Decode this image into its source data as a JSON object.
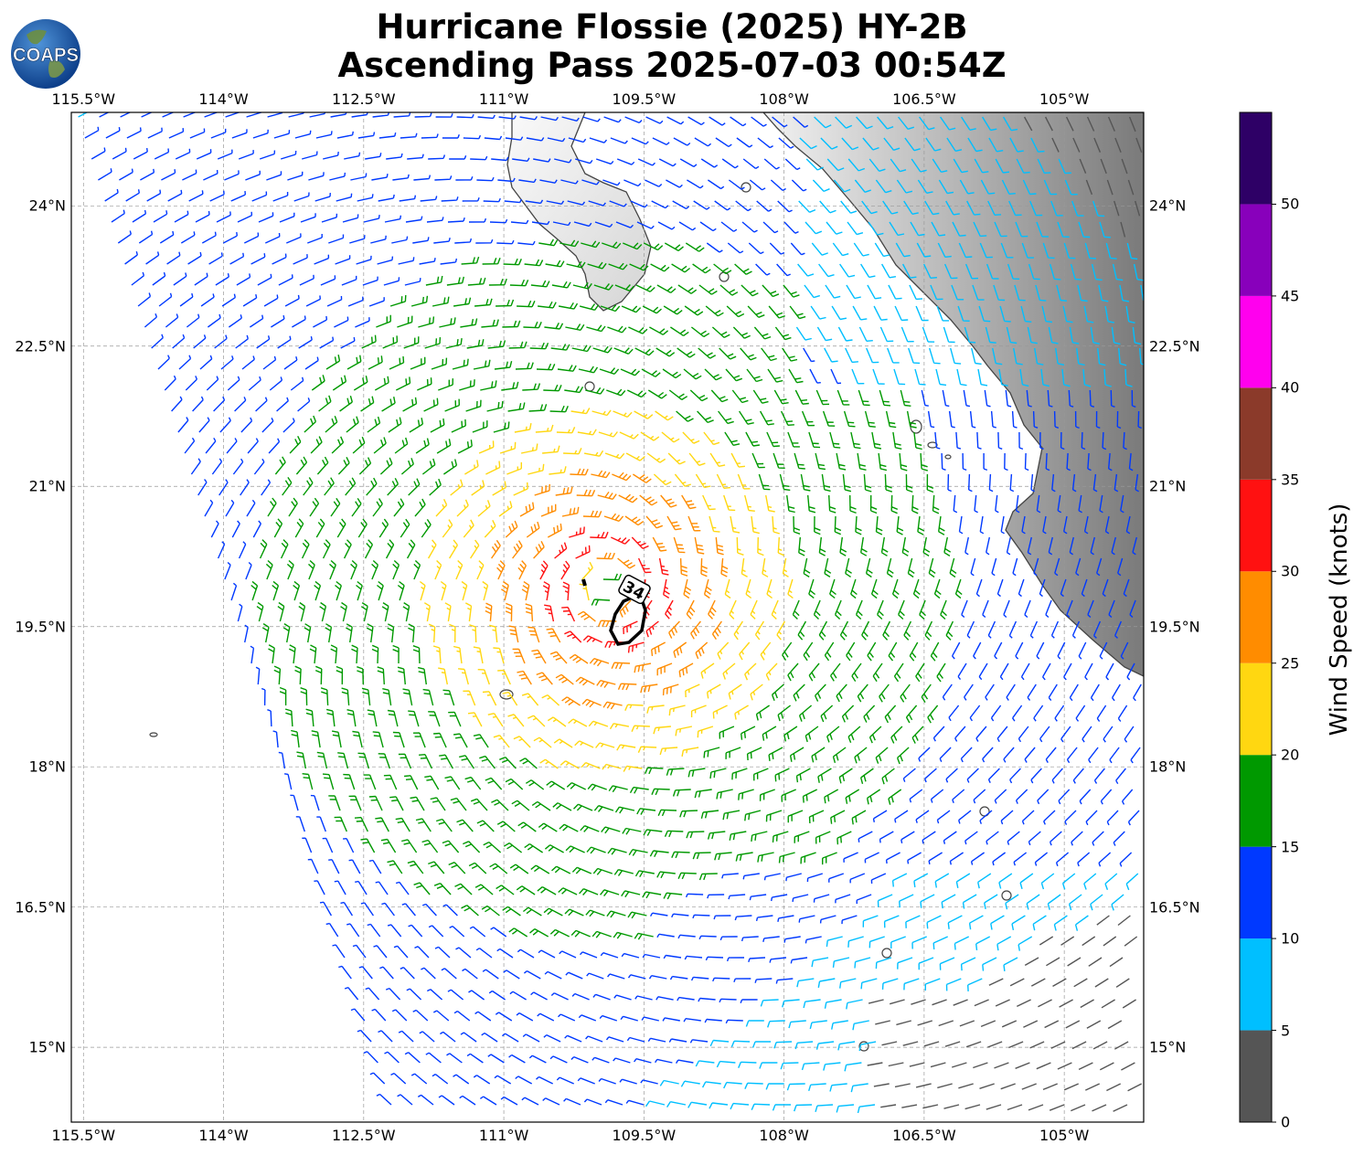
{
  "title": {
    "line1": "Hurricane Flossie (2025) HY-2B",
    "line2": "Ascending Pass 2025-07-03 00:54Z"
  },
  "logo": {
    "text": "COAPS",
    "icon": "globe-icon"
  },
  "map": {
    "lon_range": [
      -115.63,
      -104.15
    ],
    "lat_range": [
      14.2,
      25.0
    ],
    "lon_ticks": [
      "115.5°W",
      "114°W",
      "112.5°W",
      "111°W",
      "109.5°W",
      "108°W",
      "106.5°W",
      "105°W"
    ],
    "lon_values": [
      -115.5,
      -114,
      -112.5,
      -111,
      -109.5,
      -108,
      -106.5,
      -105
    ],
    "lat_ticks": [
      "15°N",
      "16.5°N",
      "18°N",
      "19.5°N",
      "21°N",
      "22.5°N",
      "24°N"
    ],
    "lat_values": [
      15,
      16.5,
      18,
      19.5,
      21,
      22.5,
      24
    ],
    "storm_center": {
      "lon": -109.9,
      "lat": 19.9
    },
    "contour_label": "34",
    "features": [
      "Baja California peninsula",
      "Mexico mainland terrain (grayscale)",
      "Islas Revillagigedo"
    ],
    "grid": true
  },
  "colorbar": {
    "title": "Wind Speed (knots)",
    "ticks": [
      "0",
      "5",
      "10",
      "15",
      "20",
      "25",
      "30",
      "35",
      "40",
      "45",
      "50"
    ],
    "bins": [
      {
        "min": 0,
        "max": 5,
        "color": "#555555"
      },
      {
        "min": 5,
        "max": 10,
        "color": "#00bfff"
      },
      {
        "min": 10,
        "max": 15,
        "color": "#0039ff"
      },
      {
        "min": 15,
        "max": 20,
        "color": "#009900"
      },
      {
        "min": 20,
        "max": 25,
        "color": "#ffd711"
      },
      {
        "min": 25,
        "max": 30,
        "color": "#ff8c00"
      },
      {
        "min": 30,
        "max": 35,
        "color": "#ff1111"
      },
      {
        "min": 35,
        "max": 40,
        "color": "#8b3a2a"
      },
      {
        "min": 40,
        "max": 45,
        "color": "#ff00ee"
      },
      {
        "min": 45,
        "max": 50,
        "color": "#8800bb"
      },
      {
        "min": 50,
        "max": 55,
        "color": "#2e0066"
      }
    ]
  }
}
